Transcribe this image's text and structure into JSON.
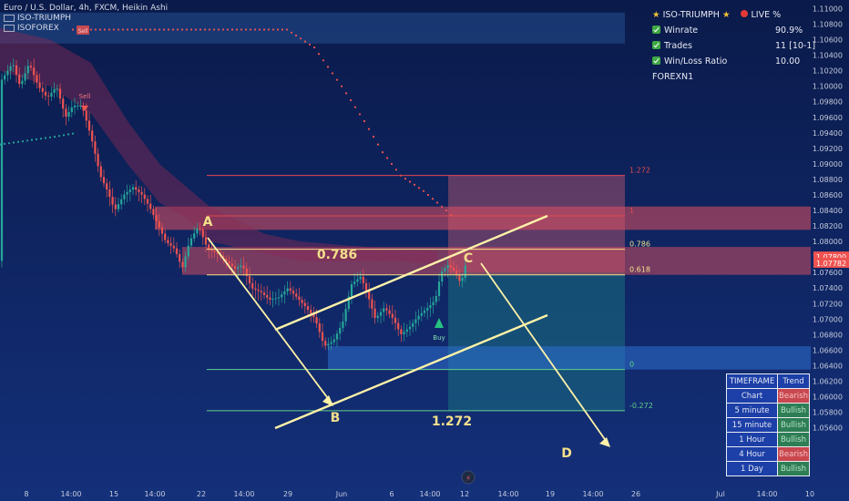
{
  "header": {
    "symbol_line": "Euro / U.S. Dollar, 4h, FXCM, Heikin Ashi",
    "indicator_1": "ISO-TRIUMPH",
    "indicator_2": "ISOFOREX"
  },
  "stats_panel": {
    "title": "ISO-TRIUMPH",
    "live_label": "LIVE %",
    "rows": [
      {
        "label": "Winrate",
        "value": "90.9%"
      },
      {
        "label": "Trades",
        "value": "11 [10-1]"
      },
      {
        "label": "Win/Loss Ratio",
        "value": "10.00"
      }
    ],
    "brand": "FOREXN1"
  },
  "trend_table": {
    "headers": [
      "TIMEFRAME",
      "Trend"
    ],
    "rows": [
      {
        "timeframe": "Chart",
        "trend": "Bearish"
      },
      {
        "timeframe": "5 minute",
        "trend": "Bullish"
      },
      {
        "timeframe": "15 minute",
        "trend": "Bullish"
      },
      {
        "timeframe": "1 Hour",
        "trend": "Bullish"
      },
      {
        "timeframe": "4 Hour",
        "trend": "Bearish"
      },
      {
        "timeframe": "1 Day",
        "trend": "Bullish"
      }
    ]
  },
  "colors": {
    "background": "#0d2259",
    "bull": "#26a69a",
    "bear": "#ef5350",
    "fib_red": "#e0484f",
    "fib_yellow": "#f4e08a",
    "fib_green": "#5fd08a",
    "channel": "#fff2a8"
  },
  "chart_data": {
    "type": "candlestick",
    "title": "Euro / U.S. Dollar, 4h, FXCM, Heikin Ashi",
    "ylim": [
      1.0555,
      1.1105
    ],
    "y_ticks": [
      "1.11000",
      "1.10800",
      "1.10600",
      "1.10400",
      "1.10200",
      "1.10000",
      "1.09800",
      "1.09600",
      "1.09400",
      "1.09200",
      "1.09000",
      "1.08800",
      "1.08600",
      "1.08400",
      "1.08200",
      "1.08000",
      "1.07800",
      "1.07600",
      "1.07400",
      "1.07200",
      "1.07000",
      "1.06800",
      "1.06600",
      "1.06400",
      "1.06200",
      "1.06000",
      "1.05800",
      "1.05600"
    ],
    "x_ticks": [
      "8",
      "14:00",
      "15",
      "14:00",
      "22",
      "14:00",
      "29",
      "Jun",
      "6",
      "14:00",
      "12",
      "14:00",
      "19",
      "14:00",
      "26",
      "Jul",
      "14:00",
      "10"
    ],
    "price_labels": [
      {
        "price": 1.078,
        "text": "1.07800",
        "color": "#ef5350"
      },
      {
        "price": 1.0772,
        "text": "1.07782",
        "color": "#ef5350"
      }
    ],
    "price_path": [
      [
        0,
        1.1005
      ],
      [
        14,
        1.103
      ],
      [
        22,
        1.1
      ],
      [
        32,
        1.103
      ],
      [
        42,
        1.1
      ],
      [
        52,
        1.0985
      ],
      [
        62,
        1.1
      ],
      [
        72,
        1.096
      ],
      [
        80,
        1.0975
      ],
      [
        90,
        1.0975
      ],
      [
        100,
        1.0935
      ],
      [
        110,
        1.0885
      ],
      [
        118,
        1.0865
      ],
      [
        126,
        1.084
      ],
      [
        136,
        1.086
      ],
      [
        146,
        1.087
      ],
      [
        156,
        1.086
      ],
      [
        164,
        1.0845
      ],
      [
        172,
        1.0825
      ],
      [
        182,
        1.08
      ],
      [
        192,
        1.079
      ],
      [
        200,
        1.0765
      ],
      [
        208,
        1.08
      ],
      [
        218,
        1.082
      ],
      [
        228,
        1.079
      ],
      [
        238,
        1.0785
      ],
      [
        248,
        1.0775
      ],
      [
        258,
        1.0765
      ],
      [
        266,
        1.077
      ],
      [
        276,
        1.074
      ],
      [
        286,
        1.0735
      ],
      [
        296,
        1.0725
      ],
      [
        306,
        1.0728
      ],
      [
        316,
        1.074
      ],
      [
        326,
        1.0728
      ],
      [
        336,
        1.0715
      ],
      [
        346,
        1.07
      ],
      [
        356,
        1.0665
      ],
      [
        366,
        1.0672
      ],
      [
        376,
        1.0695
      ],
      [
        386,
        1.0745
      ],
      [
        396,
        1.0755
      ],
      [
        404,
        1.073
      ],
      [
        412,
        1.07
      ],
      [
        422,
        1.0715
      ],
      [
        432,
        1.07
      ],
      [
        440,
        1.068
      ],
      [
        450,
        1.069
      ],
      [
        460,
        1.0705
      ],
      [
        470,
        1.0715
      ],
      [
        478,
        1.0725
      ],
      [
        484,
        1.076
      ],
      [
        492,
        1.077
      ],
      [
        500,
        1.076
      ],
      [
        506,
        1.0745
      ],
      [
        512,
        1.0775
      ]
    ],
    "overlays": [
      {
        "type": "fib",
        "level": "1.272",
        "price": 1.0885,
        "color": "#e0484f"
      },
      {
        "type": "fib",
        "level": "1",
        "price": 1.0833,
        "color": "#e0484f"
      },
      {
        "type": "fib",
        "level": "0.786",
        "price": 1.079,
        "color": "#f4e08a"
      },
      {
        "type": "fib",
        "level": "0.618",
        "price": 1.0757,
        "color": "#f4e08a"
      },
      {
        "type": "fib",
        "level": "0",
        "price": 1.0635,
        "color": "#5fd08a"
      },
      {
        "type": "fib",
        "level": "-0.272",
        "price": 1.0582,
        "color": "#5fd08a"
      }
    ],
    "annotations": [
      {
        "text": "A",
        "price": 1.0838
      },
      {
        "text": "B",
        "price": 1.0618
      },
      {
        "text": "C",
        "price": 1.0798
      },
      {
        "text": "D",
        "price": 1.057
      },
      {
        "text": "0.786",
        "price": 1.0805
      },
      {
        "text": "1.272",
        "price": 1.062
      },
      {
        "text": "Sell",
        "price": 1.0985
      },
      {
        "text": "Sell",
        "price": 1.108
      },
      {
        "text": "Buy",
        "price": 1.0712
      }
    ]
  }
}
